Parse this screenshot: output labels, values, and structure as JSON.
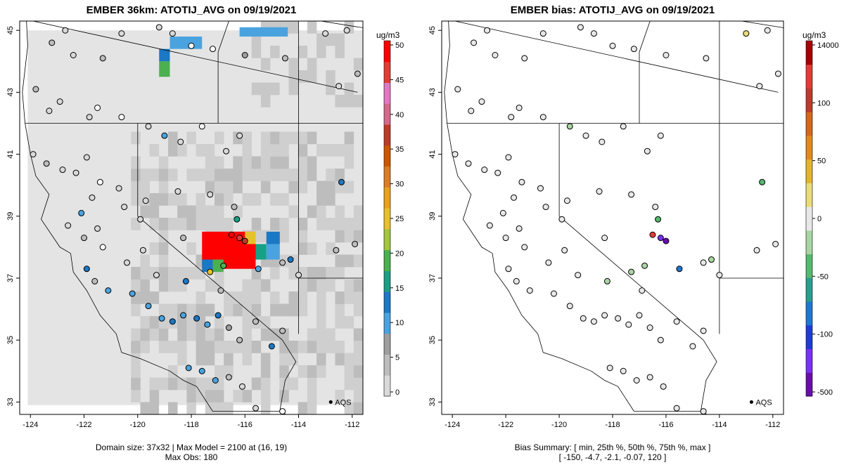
{
  "left_panel": {
    "title": "EMBER 36km: ATOTIJ_AVG on 09/19/2021",
    "caption_line1": "Domain size: 37x32 | Max Model = 2100 at (16, 19)",
    "caption_line2": "Max Obs: 180",
    "colorbar_unit": "ug/m3",
    "colorbar_ticks": [
      "0",
      "5",
      "10",
      "15",
      "20",
      "25",
      "30",
      "35",
      "40",
      "45",
      "50"
    ],
    "colorbar_colors": [
      "#d9d9d9",
      "#bdbdbd",
      "#9e9e9e",
      "#4aa3df",
      "#1b78c4",
      "#16a085",
      "#4caf50",
      "#a4c639",
      "#e6c229",
      "#e8a317",
      "#e07c1f",
      "#d35400",
      "#c0392b",
      "#d46a8a",
      "#e377c2",
      "#e53935",
      "#ff0000"
    ],
    "aqs_label": "AQS"
  },
  "right_panel": {
    "title": "EMBER bias: ATOTIJ_AVG on 09/19/2021",
    "caption_line1": "Bias Summary: [ min, 25th %, 50th %, 75th %, max ]",
    "caption_line2": "[ -150,   -4.7,   -2.1,   -0.07,   120 ]",
    "colorbar_unit": "ug/m3",
    "colorbar_ticks": [
      "-500",
      "-100",
      "-50",
      "0",
      "50",
      "100",
      "14000"
    ],
    "colorbar_colors": [
      "#6a0dad",
      "#7b2ff7",
      "#1f3bd6",
      "#1f77d0",
      "#2a9d8f",
      "#57b86f",
      "#a8d5a2",
      "#e8e8e8",
      "#eadb7a",
      "#e3b52a",
      "#e08a1e",
      "#d2691e",
      "#c0392b",
      "#e53935",
      "#a40000"
    ],
    "aqs_label": "AQS"
  },
  "axes": {
    "x_ticks": [
      "-124",
      "-122",
      "-120",
      "-118",
      "-116",
      "-114",
      "-112"
    ],
    "y_ticks": [
      "33",
      "35",
      "37",
      "39",
      "41",
      "43",
      "45"
    ],
    "lon_range": [
      -124.4,
      -111.6
    ],
    "lat_range": [
      32.6,
      45.3
    ]
  },
  "map_data": {
    "legend_point": {
      "lon": -112.8,
      "lat": 33.0
    },
    "sites": [
      {
        "lon": -123.2,
        "lat": 44.6,
        "c": "#bdbdbd",
        "b": "#e8e8e8"
      },
      {
        "lon": -122.7,
        "lat": 45.0,
        "c": "#d9d9d9",
        "b": "#e8e8e8"
      },
      {
        "lon": -122.4,
        "lat": 44.2,
        "c": "#d9d9d9",
        "b": "#e8e8e8"
      },
      {
        "lon": -121.3,
        "lat": 44.1,
        "c": "#bdbdbd",
        "b": "#e8e8e8"
      },
      {
        "lon": -120.6,
        "lat": 44.9,
        "c": "#d9d9d9",
        "b": "#e8e8e8"
      },
      {
        "lon": -119.2,
        "lat": 45.1,
        "c": "#d9d9d9",
        "b": "#e8e8e8"
      },
      {
        "lon": -118.7,
        "lat": 44.9,
        "c": "#d9d9d9",
        "b": "#e8e8e8"
      },
      {
        "lon": -118.0,
        "lat": 44.5,
        "c": "#ffffff",
        "b": "#e8e8e8"
      },
      {
        "lon": -117.2,
        "lat": 44.4,
        "c": "#ffffff",
        "b": "#e8e8e8"
      },
      {
        "lon": -116.0,
        "lat": 44.2,
        "c": "#9e9e9e",
        "b": "#e8e8e8"
      },
      {
        "lon": -114.5,
        "lat": 44.1,
        "c": "#bdbdbd",
        "b": "#e8e8e8"
      },
      {
        "lon": -113.0,
        "lat": 44.9,
        "c": "#d9d9d9",
        "b": "#eadb7a"
      },
      {
        "lon": -112.2,
        "lat": 45.0,
        "c": "#d9d9d9",
        "b": "#e8e8e8"
      },
      {
        "lon": -111.8,
        "lat": 43.6,
        "c": "#bdbdbd",
        "b": "#e8e8e8"
      },
      {
        "lon": -112.5,
        "lat": 43.2,
        "c": "#d9d9d9",
        "b": "#e8e8e8"
      },
      {
        "lon": -123.8,
        "lat": 43.1,
        "c": "#bdbdbd",
        "b": "#e8e8e8"
      },
      {
        "lon": -123.3,
        "lat": 42.4,
        "c": "#d9d9d9",
        "b": "#e8e8e8"
      },
      {
        "lon": -122.9,
        "lat": 42.7,
        "c": "#d9d9d9",
        "b": "#e8e8e8"
      },
      {
        "lon": -121.8,
        "lat": 42.2,
        "c": "#d9d9d9",
        "b": "#e8e8e8"
      },
      {
        "lon": -121.5,
        "lat": 42.5,
        "c": "#ffffff",
        "b": "#e8e8e8"
      },
      {
        "lon": -120.6,
        "lat": 42.2,
        "c": "#ffffff",
        "b": "#e8e8e8"
      },
      {
        "lon": -119.6,
        "lat": 41.9,
        "c": "#d9d9d9",
        "b": "#a8d5a2"
      },
      {
        "lon": -119.0,
        "lat": 41.6,
        "c": "#4aa3df",
        "b": "#e8e8e8"
      },
      {
        "lon": -118.4,
        "lat": 41.4,
        "c": "#d9d9d9",
        "b": "#e8e8e8"
      },
      {
        "lon": -117.6,
        "lat": 41.9,
        "c": "#ffffff",
        "b": "#e8e8e8"
      },
      {
        "lon": -116.7,
        "lat": 41.1,
        "c": "#d9d9d9",
        "b": "#e8e8e8"
      },
      {
        "lon": -116.2,
        "lat": 41.6,
        "c": "#d9d9d9",
        "b": "#e8e8e8"
      },
      {
        "lon": -123.9,
        "lat": 41.0,
        "c": "#d9d9d9",
        "b": "#e8e8e8"
      },
      {
        "lon": -123.4,
        "lat": 40.7,
        "c": "#bdbdbd",
        "b": "#e8e8e8"
      },
      {
        "lon": -122.8,
        "lat": 40.5,
        "c": "#d9d9d9",
        "b": "#e8e8e8"
      },
      {
        "lon": -122.3,
        "lat": 40.4,
        "c": "#d9d9d9",
        "b": "#e8e8e8"
      },
      {
        "lon": -121.9,
        "lat": 40.9,
        "c": "#d9d9d9",
        "b": "#e8e8e8"
      },
      {
        "lon": -121.4,
        "lat": 40.1,
        "c": "#ffffff",
        "b": "#e8e8e8"
      },
      {
        "lon": -120.7,
        "lat": 39.9,
        "c": "#d9d9d9",
        "b": "#e8e8e8"
      },
      {
        "lon": -120.5,
        "lat": 39.3,
        "c": "#d9d9d9",
        "b": "#e8e8e8"
      },
      {
        "lon": -121.7,
        "lat": 39.6,
        "c": "#d9d9d9",
        "b": "#e8e8e8"
      },
      {
        "lon": -122.1,
        "lat": 39.1,
        "c": "#4aa3df",
        "b": "#e8e8e8"
      },
      {
        "lon": -122.6,
        "lat": 38.7,
        "c": "#d9d9d9",
        "b": "#e8e8e8"
      },
      {
        "lon": -122.0,
        "lat": 38.3,
        "c": "#bdbdbd",
        "b": "#e8e8e8"
      },
      {
        "lon": -121.5,
        "lat": 38.6,
        "c": "#d9d9d9",
        "b": "#e8e8e8"
      },
      {
        "lon": -121.3,
        "lat": 38.0,
        "c": "#ffffff",
        "b": "#e8e8e8"
      },
      {
        "lon": -120.4,
        "lat": 37.5,
        "c": "#d9d9d9",
        "b": "#e8e8e8"
      },
      {
        "lon": -119.9,
        "lat": 38.9,
        "c": "#d9d9d9",
        "b": "#e8e8e8"
      },
      {
        "lon": -119.8,
        "lat": 37.9,
        "c": "#d9d9d9",
        "b": "#e8e8e8"
      },
      {
        "lon": -121.9,
        "lat": 37.3,
        "c": "#1b78c4",
        "b": "#e8e8e8"
      },
      {
        "lon": -121.6,
        "lat": 36.9,
        "c": "#bdbdbd",
        "b": "#e8e8e8"
      },
      {
        "lon": -121.1,
        "lat": 36.6,
        "c": "#4aa3df",
        "b": "#e8e8e8"
      },
      {
        "lon": -120.2,
        "lat": 36.5,
        "c": "#4aa3df",
        "b": "#e8e8e8"
      },
      {
        "lon": -119.6,
        "lat": 36.1,
        "c": "#4aa3df",
        "b": "#e8e8e8"
      },
      {
        "lon": -119.1,
        "lat": 35.7,
        "c": "#4aa3df",
        "b": "#e8e8e8"
      },
      {
        "lon": -118.7,
        "lat": 35.6,
        "c": "#1b78c4",
        "b": "#e8e8e8"
      },
      {
        "lon": -118.3,
        "lat": 35.8,
        "c": "#4aa3df",
        "b": "#e8e8e8"
      },
      {
        "lon": -117.8,
        "lat": 35.7,
        "c": "#1b78c4",
        "b": "#e8e8e8"
      },
      {
        "lon": -117.4,
        "lat": 35.5,
        "c": "#4aa3df",
        "b": "#e8e8e8"
      },
      {
        "lon": -117.0,
        "lat": 35.8,
        "c": "#1b78c4",
        "b": "#e8e8e8"
      },
      {
        "lon": -116.6,
        "lat": 35.4,
        "c": "#9e9e9e",
        "b": "#e8e8e8"
      },
      {
        "lon": -116.2,
        "lat": 35.0,
        "c": "#bdbdbd",
        "b": "#e8e8e8"
      },
      {
        "lon": -115.6,
        "lat": 35.6,
        "c": "#bdbdbd",
        "b": "#e8e8e8"
      },
      {
        "lon": -115.0,
        "lat": 34.8,
        "c": "#1b78c4",
        "b": "#e8e8e8"
      },
      {
        "lon": -114.6,
        "lat": 35.3,
        "c": "#bdbdbd",
        "b": "#e8e8e8"
      },
      {
        "lon": -118.1,
        "lat": 34.1,
        "c": "#4aa3df",
        "b": "#e8e8e8"
      },
      {
        "lon": -117.6,
        "lat": 34.0,
        "c": "#4aa3df",
        "b": "#e8e8e8"
      },
      {
        "lon": -117.1,
        "lat": 33.7,
        "c": "#4aa3df",
        "b": "#e8e8e8"
      },
      {
        "lon": -116.6,
        "lat": 33.8,
        "c": "#bdbdbd",
        "b": "#e8e8e8"
      },
      {
        "lon": -116.1,
        "lat": 33.5,
        "c": "#d9d9d9",
        "b": "#e8e8e8"
      },
      {
        "lon": -115.6,
        "lat": 32.8,
        "c": "#d9d9d9",
        "b": "#e8e8e8"
      },
      {
        "lon": -114.6,
        "lat": 32.7,
        "c": "#ffffff",
        "b": "#e8e8e8"
      },
      {
        "lon": -118.3,
        "lat": 38.3,
        "c": "#bdbdbd",
        "b": "#e8e8e8"
      },
      {
        "lon": -117.3,
        "lat": 37.2,
        "c": "#e6c229",
        "b": "#a8d5a2"
      },
      {
        "lon": -116.8,
        "lat": 37.4,
        "c": "#4caf50",
        "b": "#a8d5a2"
      },
      {
        "lon": -116.2,
        "lat": 38.3,
        "c": "#e53935",
        "b": "#7b2ff7"
      },
      {
        "lon": -116.0,
        "lat": 38.2,
        "c": "#c0392b",
        "b": "#6a0dad"
      },
      {
        "lon": -116.5,
        "lat": 38.4,
        "c": "#ff0000",
        "b": "#e53935"
      },
      {
        "lon": -115.5,
        "lat": 37.3,
        "c": "#4aa3df",
        "b": "#1f77d0"
      },
      {
        "lon": -114.6,
        "lat": 37.5,
        "c": "#bdbdbd",
        "b": "#e8e8e8"
      },
      {
        "lon": -114.3,
        "lat": 37.6,
        "c": "#1b78c4",
        "b": "#a8d5a2"
      },
      {
        "lon": -114.0,
        "lat": 37.1,
        "c": "#d9d9d9",
        "b": "#e8e8e8"
      },
      {
        "lon": -112.6,
        "lat": 37.9,
        "c": "#bdbdbd",
        "b": "#e8e8e8"
      },
      {
        "lon": -112.4,
        "lat": 40.1,
        "c": "#1b78c4",
        "b": "#57b86f"
      },
      {
        "lon": -116.3,
        "lat": 38.9,
        "c": "#16a085",
        "b": "#57b86f"
      },
      {
        "lon": -116.4,
        "lat": 39.3,
        "c": "#bdbdbd",
        "b": "#e8e8e8"
      },
      {
        "lon": -117.3,
        "lat": 39.7,
        "c": "#d9d9d9",
        "b": "#e8e8e8"
      },
      {
        "lon": -118.5,
        "lat": 39.8,
        "c": "#d9d9d9",
        "b": "#e8e8e8"
      },
      {
        "lon": -119.7,
        "lat": 39.5,
        "c": "#d9d9d9",
        "b": "#e8e8e8"
      },
      {
        "lon": -118.2,
        "lat": 36.9,
        "c": "#1b78c4",
        "b": "#a8d5a2"
      },
      {
        "lon": -119.3,
        "lat": 37.1,
        "c": "#d9d9d9",
        "b": "#e8e8e8"
      },
      {
        "lon": -116.9,
        "lat": 36.6,
        "c": "#bdbdbd",
        "b": "#e8e8e8"
      },
      {
        "lon": -111.9,
        "lat": 38.1,
        "c": "#bdbdbd",
        "b": "#e8e8e8"
      }
    ]
  }
}
